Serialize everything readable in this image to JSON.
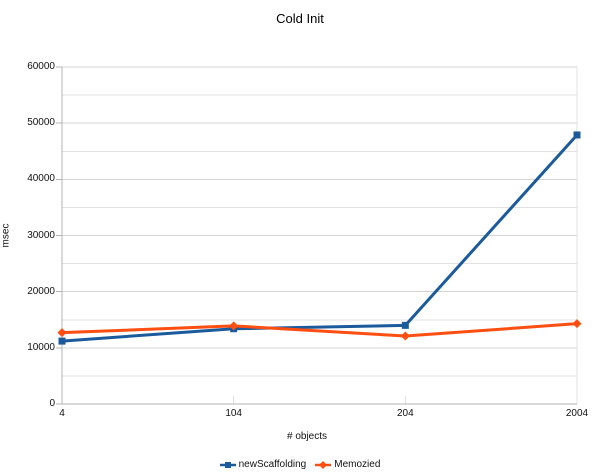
{
  "chart_data": {
    "type": "line",
    "title": "Cold Init",
    "xlabel": "# objects",
    "ylabel": "msec",
    "categories": [
      "4",
      "104",
      "204",
      "2004"
    ],
    "series": [
      {
        "name": "newScaffolding",
        "values": [
          11200,
          13400,
          14000,
          47900
        ],
        "color": "#1b5a9b",
        "marker": "square"
      },
      {
        "name": "Memozied",
        "values": [
          12700,
          13900,
          12100,
          14300
        ],
        "color": "#ff4e11",
        "marker": "diamond"
      }
    ],
    "ylim": [
      0,
      60000
    ],
    "ytick_step": 10000,
    "minor_ytick_step": 5000,
    "ytick_labels": [
      "0",
      "10000",
      "20000",
      "30000",
      "40000",
      "50000",
      "60000"
    ],
    "grid": "horizontal",
    "legend_position": "bottom",
    "colors": {
      "major_grid": "#d4d4d4",
      "minor_grid": "#e2e2e2",
      "axis": "#b5b5b5",
      "text": "#111111",
      "background": "#ffffff"
    }
  }
}
